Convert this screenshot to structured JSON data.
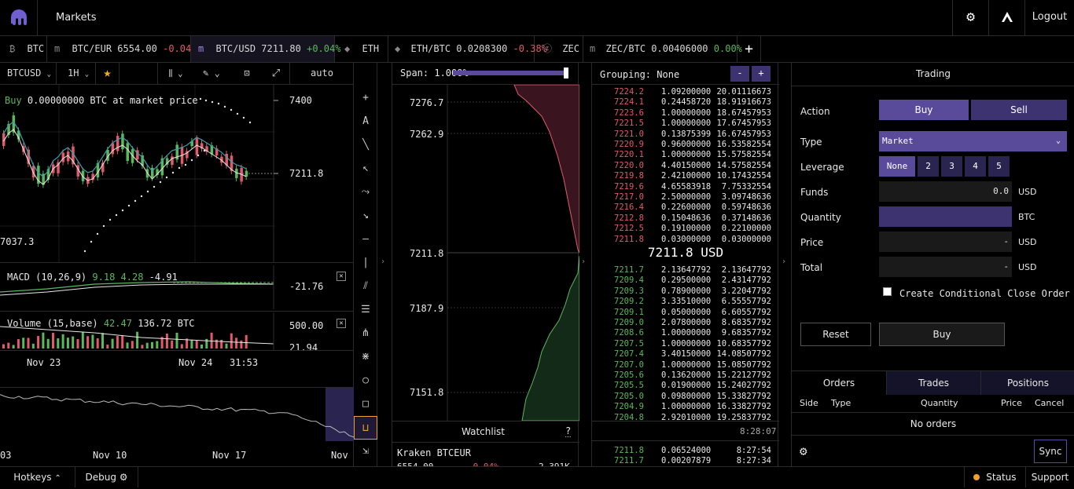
{
  "nav": {
    "title": "Markets",
    "logout": "Logout"
  },
  "tickers": [
    {
      "icon": "₿",
      "label": "BTC",
      "price": "",
      "change": ""
    },
    {
      "icon": "m",
      "label": "BTC/EUR",
      "price": "6554.00",
      "change": "-0.04%"
    },
    {
      "icon": "m",
      "label": "BTC/USD",
      "price": "7211.80",
      "change": "+0.04%"
    },
    {
      "icon": "◆",
      "label": "ETH",
      "price": "",
      "change": ""
    },
    {
      "icon": "◆",
      "label": "ETH/BTC",
      "price": "0.0208300",
      "change": "-0.38%"
    },
    {
      "icon": "ⓩ",
      "label": "ZEC",
      "price": "",
      "change": ""
    },
    {
      "icon": "m",
      "label": "ZEC/BTC",
      "price": "0.00406000",
      "change": "0.00%"
    }
  ],
  "chart": {
    "symbol": "BTCUSD",
    "interval": "1H",
    "scale": "auto",
    "order_hint_prefix": "Buy",
    "order_hint": "0.00000000 BTC at market price",
    "price_labels": [
      "7400",
      "7211.8",
      "7037.3"
    ],
    "macd_label": "MACD (10,26,9)",
    "macd_vals": [
      "9.18",
      "4.28",
      "-4.91"
    ],
    "macd_axis": "-21.76",
    "volume_label": "Volume (15,base)",
    "volume_vals": [
      "42.47",
      "136.72 BTC"
    ],
    "volume_axis": [
      "500.00",
      "21.94"
    ],
    "time_labels": [
      "Nov 23",
      "Nov 24",
      "31:53"
    ],
    "overview_labels": [
      "03",
      "Nov 10",
      "Nov 17",
      "Nov"
    ]
  },
  "depth": {
    "span_label": "Span:",
    "span_value": "1.000%",
    "prices": [
      "7276.7",
      "7262.9",
      "7211.8",
      "7187.9",
      "7151.8"
    ],
    "watchlist_title": "Watchlist",
    "watchlist_help": "?",
    "watchlist_item": "Kraken BTCEUR",
    "watchlist_item_row": [
      "6554.00",
      "-0.04%",
      "2.391K"
    ]
  },
  "book": {
    "grouping_label": "Grouping:",
    "grouping_value": "None",
    "asks": [
      [
        "7224.2",
        "1.09200000",
        "20.01116673"
      ],
      [
        "7224.1",
        "0.24458720",
        "18.91916673"
      ],
      [
        "7223.6",
        "1.00000000",
        "18.67457953"
      ],
      [
        "7221.5",
        "1.00000000",
        "17.67457953"
      ],
      [
        "7221.0",
        "0.13875399",
        "16.67457953"
      ],
      [
        "7220.9",
        "0.96000000",
        "16.53582554"
      ],
      [
        "7220.1",
        "1.00000000",
        "15.57582554"
      ],
      [
        "7220.0",
        "4.40150000",
        "14.57582554"
      ],
      [
        "7219.8",
        "2.42100000",
        "10.17432554"
      ],
      [
        "7219.6",
        "4.65583918",
        "7.75332554"
      ],
      [
        "7217.0",
        "2.50000000",
        "3.09748636"
      ],
      [
        "7216.4",
        "0.22600000",
        "0.59748636"
      ],
      [
        "7212.8",
        "0.15048636",
        "0.37148636"
      ],
      [
        "7212.5",
        "0.19100000",
        "0.22100000"
      ],
      [
        "7211.8",
        "0.03000000",
        "0.03000000"
      ]
    ],
    "mid": "7211.8 USD",
    "bids": [
      [
        "7211.7",
        "2.13647792",
        "2.13647792"
      ],
      [
        "7209.4",
        "0.29500000",
        "2.43147792"
      ],
      [
        "7209.3",
        "0.78900000",
        "3.22047792"
      ],
      [
        "7209.2",
        "3.33510000",
        "6.55557792"
      ],
      [
        "7209.1",
        "0.05000000",
        "6.60557792"
      ],
      [
        "7209.0",
        "2.07800000",
        "8.68357792"
      ],
      [
        "7208.6",
        "1.00000000",
        "9.68357792"
      ],
      [
        "7207.5",
        "1.00000000",
        "10.68357792"
      ],
      [
        "7207.4",
        "3.40150000",
        "14.08507792"
      ],
      [
        "7207.0",
        "1.00000000",
        "15.08507792"
      ],
      [
        "7205.6",
        "0.13620000",
        "15.22127792"
      ],
      [
        "7205.5",
        "0.01900000",
        "15.24027792"
      ],
      [
        "7205.0",
        "0.09800000",
        "15.33827792"
      ],
      [
        "7204.9",
        "1.00000000",
        "16.33827792"
      ],
      [
        "7204.8",
        "2.92010000",
        "19.25837792"
      ]
    ],
    "book_time": "8:28:07",
    "trades": [
      [
        "7211.8",
        "0.06524000",
        "8:27:54"
      ],
      [
        "7211.7",
        "0.00207879",
        "8:27:34"
      ]
    ]
  },
  "trading": {
    "title": "Trading",
    "action_label": "Action",
    "buy": "Buy",
    "sell": "Sell",
    "type_label": "Type",
    "type_value": "Market",
    "leverage_label": "Leverage",
    "leverage_options": [
      "None",
      "2",
      "3",
      "4",
      "5"
    ],
    "funds_label": "Funds",
    "funds_value": "0.0",
    "funds_unit": "USD",
    "quantity_label": "Quantity",
    "quantity_unit": "BTC",
    "price_label": "Price",
    "price_value": "-",
    "price_unit": "USD",
    "total_label": "Total",
    "total_value": "-",
    "total_unit": "USD",
    "conditional_label": "Create Conditional Close Order",
    "reset": "Reset",
    "submit": "Buy",
    "tabs": [
      "Orders",
      "Trades",
      "Positions"
    ],
    "columns": [
      "Side",
      "Type",
      "Quantity",
      "Price",
      "Cancel"
    ],
    "empty": "No orders",
    "sync": "Sync"
  },
  "footer": {
    "hotkeys": "Hotkeys",
    "debug": "Debug",
    "status": "Status",
    "support": "Support"
  },
  "colors": {
    "accent": "#5a4b9a",
    "bid_green": "#5cb85c",
    "ask_red": "#e05a6a",
    "status_dot": "#f0a030"
  }
}
